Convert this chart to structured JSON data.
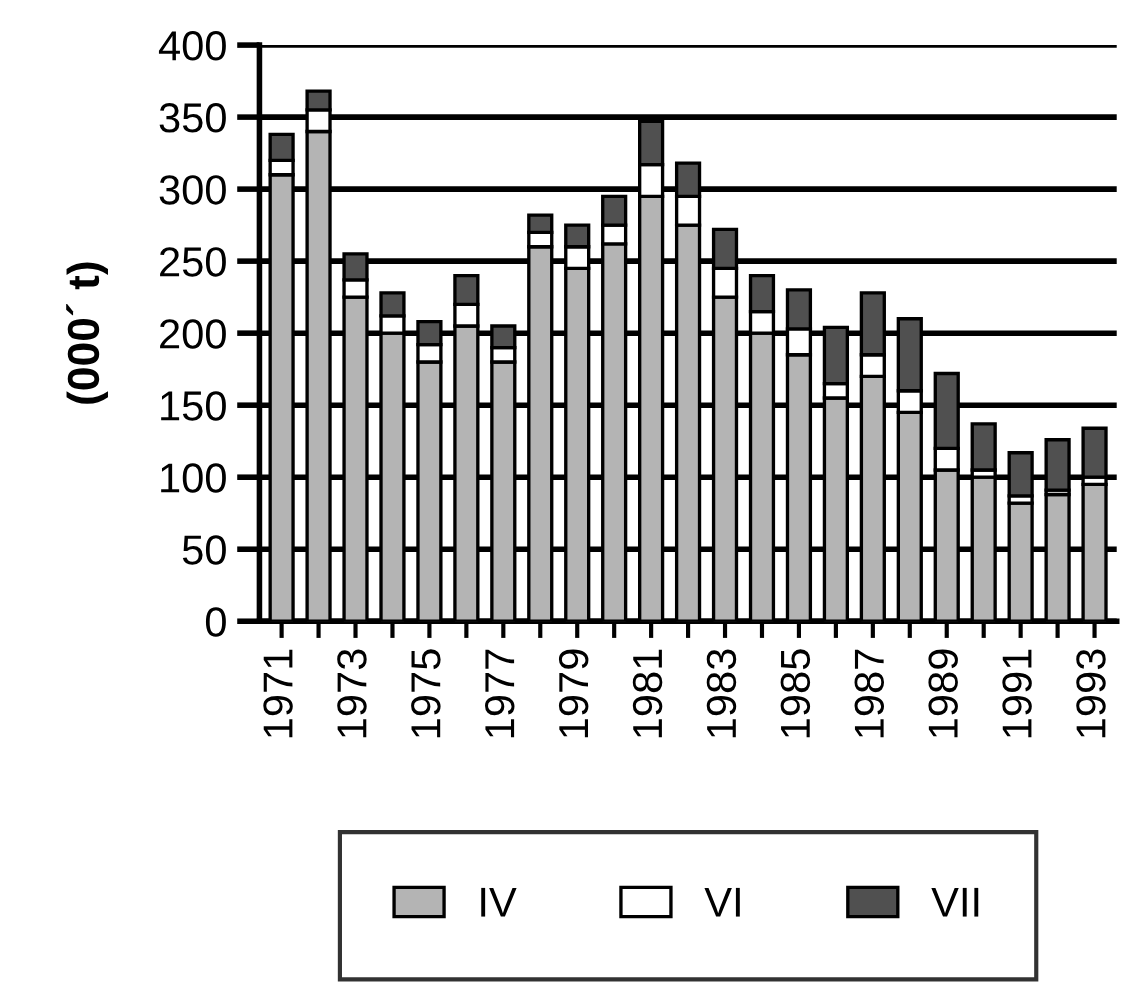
{
  "chart_data": {
    "type": "bar",
    "stacked": true,
    "ylabel": "(000´ t)",
    "categories": [
      "1971",
      null,
      "1973",
      null,
      "1975",
      null,
      "1977",
      null,
      "1979",
      null,
      "1981",
      null,
      "1983",
      null,
      "1985",
      null,
      "1987",
      null,
      "1989",
      null,
      "1991",
      null,
      "1993"
    ],
    "series": [
      {
        "name": "IV",
        "color": "#b4b4b4",
        "values": [
          310,
          340,
          225,
          200,
          180,
          205,
          180,
          260,
          245,
          262,
          295,
          275,
          225,
          200,
          185,
          155,
          170,
          145,
          105,
          100,
          82,
          88,
          95
        ]
      },
      {
        "name": "VI",
        "color": "#ffffff",
        "values": [
          10,
          15,
          12,
          12,
          12,
          15,
          10,
          10,
          15,
          13,
          22,
          20,
          20,
          15,
          18,
          10,
          15,
          15,
          15,
          5,
          5,
          3,
          5
        ]
      },
      {
        "name": "VII",
        "color": "#505050",
        "values": [
          18,
          13,
          18,
          16,
          16,
          20,
          15,
          12,
          15,
          20,
          30,
          23,
          27,
          25,
          27,
          39,
          43,
          50,
          52,
          32,
          30,
          35,
          34
        ]
      }
    ],
    "ylim": [
      0,
      400
    ],
    "yticks": [
      0,
      50,
      100,
      150,
      200,
      250,
      300,
      350,
      400
    ],
    "grid": "y",
    "legend": "bottom"
  }
}
